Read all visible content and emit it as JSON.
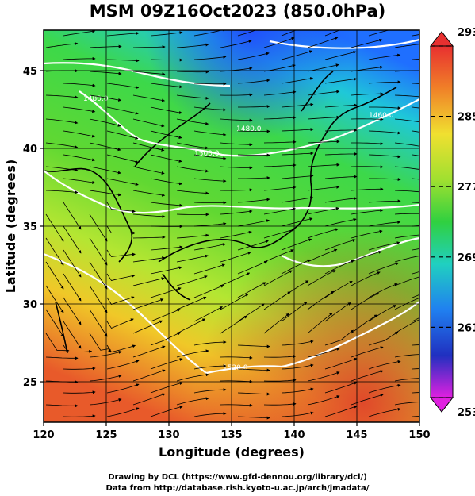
{
  "title": "MSM 09Z16Oct2023 (850.0hPa)",
  "map": {
    "x_axis_label": "Longitude (degrees)",
    "y_axis_label": "Latitude  (degrees)",
    "lon_range": [
      120,
      150
    ],
    "lat_range": [
      22.4,
      47.6
    ],
    "lon_ticks": [
      120,
      125,
      130,
      135,
      140,
      145,
      150
    ],
    "lat_ticks": [
      25,
      30,
      35,
      40,
      45
    ],
    "grid": true,
    "contour_labels": [
      "1520.0",
      "1500.0",
      "1480.0",
      "1460.0",
      "1480.0"
    ],
    "fill_colors": {
      "cold": "#1f4fff",
      "cool": "#2fc8c8",
      "mid": "#3ccf3c",
      "warm": "#c8e632",
      "hot": "#e85a2a"
    }
  },
  "colorbar": {
    "tick_labels": [
      "293",
      "285",
      "277",
      "269",
      "261",
      "253"
    ],
    "min": 253,
    "max": 293
  },
  "footer": {
    "line1": "Drawing by DCL (https://www.gfd-dennou.org/library/dcl/)",
    "line2": "Data from http://database.rish.kyoto-u.ac.jp/arch/jmadata/"
  }
}
